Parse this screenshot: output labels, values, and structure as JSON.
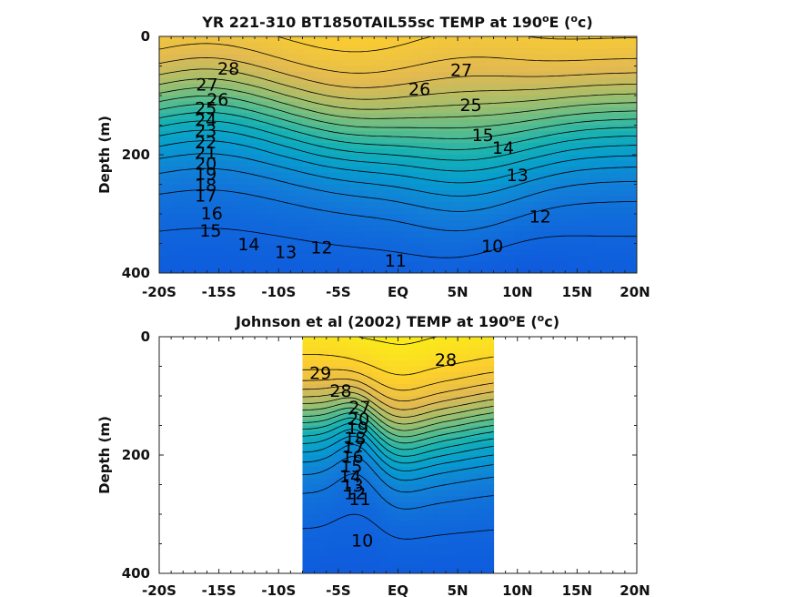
{
  "chart_data": [
    {
      "type": "heatmap",
      "subtype": "filled-contour",
      "title": "YR 221-310 BT1850TAIL55sc TEMP at 190",
      "title_sup": "o",
      "title_tail": "E (",
      "title_unit_sup": "o",
      "title_end": "c)",
      "ylabel": "Depth (m)",
      "y_ticks": [
        "0",
        "200",
        "400"
      ],
      "x_ticks": [
        "-20S",
        "-15S",
        "-10S",
        "-5S",
        "EQ",
        "5N",
        "10N",
        "15N",
        "20N"
      ],
      "xlim": [
        -20,
        20
      ],
      "ylim": [
        0,
        400
      ],
      "data_lon_range": [
        -20,
        20
      ],
      "colormap": "parula",
      "clim": [
        9,
        30
      ],
      "contour_interval": 1,
      "contour_labels": [
        {
          "text": "28",
          "lon": -14.2,
          "depth": 55
        },
        {
          "text": "27",
          "lon": -16.0,
          "depth": 82
        },
        {
          "text": "26",
          "lon": -15.1,
          "depth": 108
        },
        {
          "text": "25",
          "lon": -16.1,
          "depth": 122
        },
        {
          "text": "24",
          "lon": -16.1,
          "depth": 142
        },
        {
          "text": "23",
          "lon": -16.1,
          "depth": 160
        },
        {
          "text": "22",
          "lon": -16.1,
          "depth": 180
        },
        {
          "text": "21",
          "lon": -16.1,
          "depth": 198
        },
        {
          "text": "20",
          "lon": -16.1,
          "depth": 216
        },
        {
          "text": "19",
          "lon": -16.1,
          "depth": 233
        },
        {
          "text": "18",
          "lon": -16.1,
          "depth": 252
        },
        {
          "text": "17",
          "lon": -16.1,
          "depth": 270
        },
        {
          "text": "16",
          "lon": -15.6,
          "depth": 300
        },
        {
          "text": "15",
          "lon": -15.7,
          "depth": 329
        },
        {
          "text": "14",
          "lon": -12.5,
          "depth": 352
        },
        {
          "text": "13",
          "lon": -9.4,
          "depth": 365
        },
        {
          "text": "12",
          "lon": -6.4,
          "depth": 358
        },
        {
          "text": "11",
          "lon": -0.2,
          "depth": 380
        },
        {
          "text": "10",
          "lon": 7.9,
          "depth": 355
        },
        {
          "text": "26",
          "lon": 1.8,
          "depth": 90
        },
        {
          "text": "27",
          "lon": 5.3,
          "depth": 58
        },
        {
          "text": "25",
          "lon": 6.1,
          "depth": 117
        },
        {
          "text": "15",
          "lon": 7.1,
          "depth": 168
        },
        {
          "text": "14",
          "lon": 8.8,
          "depth": 189
        },
        {
          "text": "13",
          "lon": 10.0,
          "depth": 235
        },
        {
          "text": "12",
          "lon": 11.9,
          "depth": 305
        }
      ]
    },
    {
      "type": "heatmap",
      "subtype": "filled-contour",
      "title": "Johnson et al (2002) TEMP at 190",
      "title_sup": "o",
      "title_tail": "E (",
      "title_unit_sup": "o",
      "title_end": "c)",
      "ylabel": "Depth (m)",
      "y_ticks": [
        "0",
        "200",
        "400"
      ],
      "x_ticks": [
        "-20S",
        "-15S",
        "-10S",
        "-5S",
        "EQ",
        "5N",
        "10N",
        "15N",
        "20N"
      ],
      "xlim": [
        -20,
        20
      ],
      "ylim": [
        0,
        400
      ],
      "data_lon_range": [
        -8,
        8
      ],
      "colormap": "parula",
      "clim": [
        9,
        30
      ],
      "contour_interval": 1,
      "contour_labels": [
        {
          "text": "29",
          "lon": -6.5,
          "depth": 62
        },
        {
          "text": "28",
          "lon": -4.8,
          "depth": 92
        },
        {
          "text": "27",
          "lon": -3.2,
          "depth": 120
        },
        {
          "text": "20",
          "lon": -3.3,
          "depth": 140
        },
        {
          "text": "19",
          "lon": -3.4,
          "depth": 155
        },
        {
          "text": "18",
          "lon": -3.6,
          "depth": 172
        },
        {
          "text": "17",
          "lon": -3.7,
          "depth": 188
        },
        {
          "text": "16",
          "lon": -3.8,
          "depth": 204
        },
        {
          "text": "15",
          "lon": -3.9,
          "depth": 220
        },
        {
          "text": "14",
          "lon": -4.0,
          "depth": 237
        },
        {
          "text": "13",
          "lon": -3.8,
          "depth": 252
        },
        {
          "text": "12",
          "lon": -3.6,
          "depth": 265
        },
        {
          "text": "11",
          "lon": -3.2,
          "depth": 275
        },
        {
          "text": "28",
          "lon": 4.0,
          "depth": 40
        },
        {
          "text": "10",
          "lon": -3.0,
          "depth": 345
        }
      ]
    }
  ]
}
